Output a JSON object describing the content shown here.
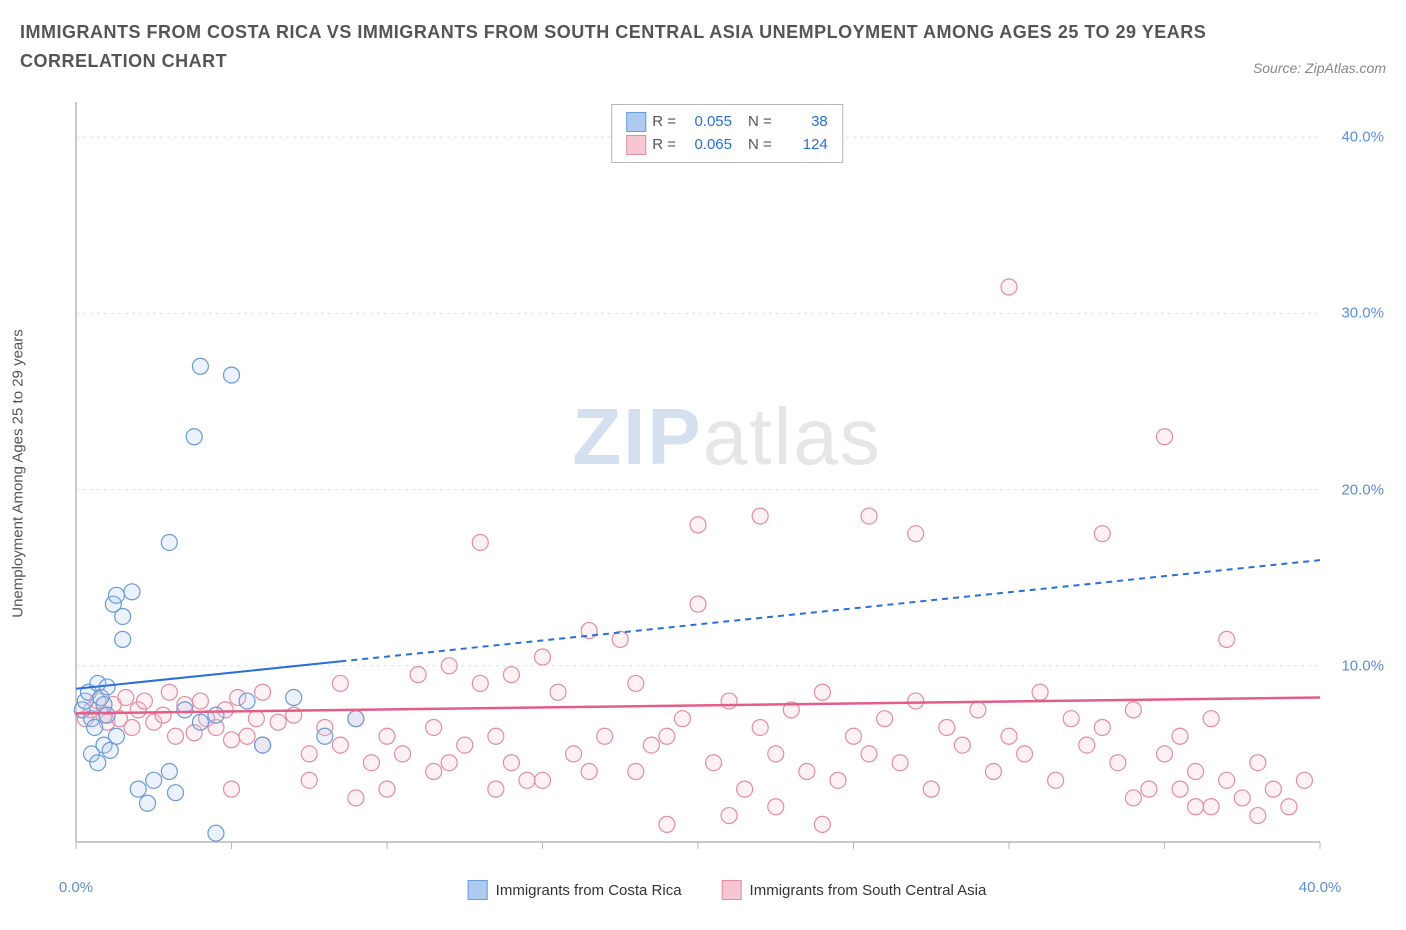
{
  "title_line1": "IMMIGRANTS FROM COSTA RICA VS IMMIGRANTS FROM SOUTH CENTRAL ASIA UNEMPLOYMENT AMONG AGES 25 TO 29 YEARS",
  "title_line2": "CORRELATION CHART",
  "source": "Source: ZipAtlas.com",
  "watermark_a": "ZIP",
  "watermark_b": "atlas",
  "chart": {
    "type": "scatter",
    "background_color": "#ffffff",
    "grid_color": "#e0e0e0",
    "axis_color": "#b8b8b8",
    "tick_color": "#5b8fd6",
    "ylabel": "Unemployment Among Ages 25 to 29 years",
    "label_fontsize": 15,
    "xlim": [
      0,
      40
    ],
    "ylim": [
      0,
      42
    ],
    "xticks": [
      0,
      40
    ],
    "xtick_labels": [
      "0.0%",
      "40.0%"
    ],
    "yticks": [
      10,
      20,
      30,
      40
    ],
    "ytick_labels": [
      "10.0%",
      "20.0%",
      "30.0%",
      "40.0%"
    ],
    "marker_radius": 8,
    "marker_stroke_width": 1.2,
    "marker_fill_opacity": 0.25,
    "legend_top": {
      "rows": [
        {
          "swatch_fill": "#aecbef",
          "swatch_stroke": "#6a9ad8",
          "r_label": "R =",
          "r_value": "0.055",
          "n_label": "N =",
          "n_value": "38"
        },
        {
          "swatch_fill": "#f6c6d2",
          "swatch_stroke": "#e38ca2",
          "r_label": "R =",
          "r_value": "0.065",
          "n_label": "N =",
          "n_value": "124"
        }
      ]
    },
    "legend_bottom": {
      "items": [
        {
          "swatch_fill": "#aecbef",
          "swatch_stroke": "#6a9ad8",
          "label": "Immigrants from Costa Rica"
        },
        {
          "swatch_fill": "#f6c6d2",
          "swatch_stroke": "#e38ca2",
          "label": "Immigrants from South Central Asia"
        }
      ]
    },
    "series": [
      {
        "name": "Immigrants from Costa Rica",
        "color_fill": "#aecbef",
        "color_stroke": "#6a9ad8",
        "trend": {
          "x1": 0,
          "y1": 8.7,
          "x2": 40,
          "y2": 16.0,
          "solid_until_x": 8.5,
          "color": "#2a6fd6",
          "width": 2,
          "dash": "6,5"
        },
        "points": [
          [
            0.2,
            7.5
          ],
          [
            0.3,
            8.0
          ],
          [
            0.4,
            8.5
          ],
          [
            0.5,
            7.0
          ],
          [
            0.6,
            6.5
          ],
          [
            0.7,
            9.0
          ],
          [
            0.8,
            8.2
          ],
          [
            0.9,
            7.8
          ],
          [
            1.0,
            8.8
          ],
          [
            1.0,
            7.2
          ],
          [
            1.2,
            13.5
          ],
          [
            1.3,
            14.0
          ],
          [
            1.5,
            12.8
          ],
          [
            1.8,
            14.2
          ],
          [
            0.5,
            5.0
          ],
          [
            0.7,
            4.5
          ],
          [
            0.9,
            5.5
          ],
          [
            1.1,
            5.2
          ],
          [
            1.3,
            6.0
          ],
          [
            1.5,
            11.5
          ],
          [
            2.0,
            3.0
          ],
          [
            2.3,
            2.2
          ],
          [
            2.5,
            3.5
          ],
          [
            3.0,
            4.0
          ],
          [
            3.2,
            2.8
          ],
          [
            3.5,
            7.5
          ],
          [
            4.0,
            6.8
          ],
          [
            4.5,
            7.2
          ],
          [
            3.0,
            17.0
          ],
          [
            3.8,
            23.0
          ],
          [
            4.0,
            27.0
          ],
          [
            5.0,
            26.5
          ],
          [
            5.5,
            8.0
          ],
          [
            6.0,
            5.5
          ],
          [
            7.0,
            8.2
          ],
          [
            8.0,
            6.0
          ],
          [
            9.0,
            7.0
          ],
          [
            4.5,
            0.5
          ]
        ]
      },
      {
        "name": "Immigrants from South Central Asia",
        "color_fill": "#f6c6d2",
        "color_stroke": "#e38ca2",
        "trend": {
          "x1": 0,
          "y1": 7.3,
          "x2": 40,
          "y2": 8.2,
          "solid_until_x": 40,
          "color": "#e35d87",
          "width": 2.5,
          "dash": null
        },
        "points": [
          [
            0.3,
            7.0
          ],
          [
            0.5,
            7.5
          ],
          [
            0.7,
            8.0
          ],
          [
            0.9,
            7.2
          ],
          [
            1.0,
            6.8
          ],
          [
            1.2,
            7.8
          ],
          [
            1.4,
            7.0
          ],
          [
            1.6,
            8.2
          ],
          [
            1.8,
            6.5
          ],
          [
            2.0,
            7.5
          ],
          [
            2.2,
            8.0
          ],
          [
            2.5,
            6.8
          ],
          [
            2.8,
            7.2
          ],
          [
            3.0,
            8.5
          ],
          [
            3.2,
            6.0
          ],
          [
            3.5,
            7.8
          ],
          [
            3.8,
            6.2
          ],
          [
            4.0,
            8.0
          ],
          [
            4.2,
            7.0
          ],
          [
            4.5,
            6.5
          ],
          [
            4.8,
            7.5
          ],
          [
            5.0,
            5.8
          ],
          [
            5.2,
            8.2
          ],
          [
            5.5,
            6.0
          ],
          [
            5.8,
            7.0
          ],
          [
            6.0,
            5.5
          ],
          [
            6.5,
            6.8
          ],
          [
            7.0,
            7.2
          ],
          [
            7.5,
            5.0
          ],
          [
            8.0,
            6.5
          ],
          [
            8.5,
            5.5
          ],
          [
            9.0,
            7.0
          ],
          [
            9.5,
            4.5
          ],
          [
            10.0,
            6.0
          ],
          [
            10.5,
            5.0
          ],
          [
            11.0,
            9.5
          ],
          [
            11.5,
            4.0
          ],
          [
            12.0,
            10.0
          ],
          [
            12.5,
            5.5
          ],
          [
            13.0,
            9.0
          ],
          [
            13.5,
            6.0
          ],
          [
            14.0,
            9.5
          ],
          [
            14.5,
            3.5
          ],
          [
            15.0,
            10.5
          ],
          [
            13.0,
            17.0
          ],
          [
            15.5,
            8.5
          ],
          [
            16.0,
            5.0
          ],
          [
            16.5,
            12.0
          ],
          [
            17.0,
            6.0
          ],
          [
            17.5,
            11.5
          ],
          [
            18.0,
            4.0
          ],
          [
            18.5,
            5.5
          ],
          [
            19.0,
            1.0
          ],
          [
            19.5,
            7.0
          ],
          [
            20.0,
            13.5
          ],
          [
            20.0,
            18.0
          ],
          [
            20.5,
            4.5
          ],
          [
            21.0,
            8.0
          ],
          [
            21.5,
            3.0
          ],
          [
            22.0,
            6.5
          ],
          [
            22.0,
            18.5
          ],
          [
            22.5,
            5.0
          ],
          [
            23.0,
            7.5
          ],
          [
            23.5,
            4.0
          ],
          [
            24.0,
            8.5
          ],
          [
            24.5,
            3.5
          ],
          [
            25.0,
            6.0
          ],
          [
            25.5,
            5.0
          ],
          [
            25.5,
            18.5
          ],
          [
            26.0,
            7.0
          ],
          [
            26.5,
            4.5
          ],
          [
            27.0,
            8.0
          ],
          [
            27.0,
            17.5
          ],
          [
            27.5,
            3.0
          ],
          [
            28.0,
            6.5
          ],
          [
            28.5,
            5.5
          ],
          [
            29.0,
            7.5
          ],
          [
            29.5,
            4.0
          ],
          [
            30.0,
            31.5
          ],
          [
            30.0,
            6.0
          ],
          [
            30.5,
            5.0
          ],
          [
            31.0,
            8.5
          ],
          [
            31.5,
            3.5
          ],
          [
            32.0,
            7.0
          ],
          [
            32.5,
            5.5
          ],
          [
            33.0,
            6.5
          ],
          [
            33.0,
            17.5
          ],
          [
            33.5,
            4.5
          ],
          [
            34.0,
            7.5
          ],
          [
            34.5,
            3.0
          ],
          [
            35.0,
            23.0
          ],
          [
            35.0,
            5.0
          ],
          [
            35.5,
            6.0
          ],
          [
            36.0,
            4.0
          ],
          [
            36.5,
            7.0
          ],
          [
            36.5,
            2.0
          ],
          [
            37.0,
            3.5
          ],
          [
            37.0,
            11.5
          ],
          [
            37.5,
            2.5
          ],
          [
            38.0,
            4.5
          ],
          [
            38.0,
            1.5
          ],
          [
            38.5,
            3.0
          ],
          [
            39.0,
            2.0
          ],
          [
            39.5,
            3.5
          ],
          [
            34.0,
            2.5
          ],
          [
            35.5,
            3.0
          ],
          [
            36.0,
            2.0
          ],
          [
            21.0,
            1.5
          ],
          [
            22.5,
            2.0
          ],
          [
            24.0,
            1.0
          ],
          [
            14.0,
            4.5
          ],
          [
            15.0,
            3.5
          ],
          [
            16.5,
            4.0
          ],
          [
            18.0,
            9.0
          ],
          [
            12.0,
            4.5
          ],
          [
            10.0,
            3.0
          ],
          [
            11.5,
            6.5
          ],
          [
            13.5,
            3.0
          ],
          [
            9.0,
            2.5
          ],
          [
            8.5,
            9.0
          ],
          [
            7.5,
            3.5
          ],
          [
            6.0,
            8.5
          ],
          [
            5.0,
            3.0
          ],
          [
            19.0,
            6.0
          ]
        ]
      }
    ]
  }
}
